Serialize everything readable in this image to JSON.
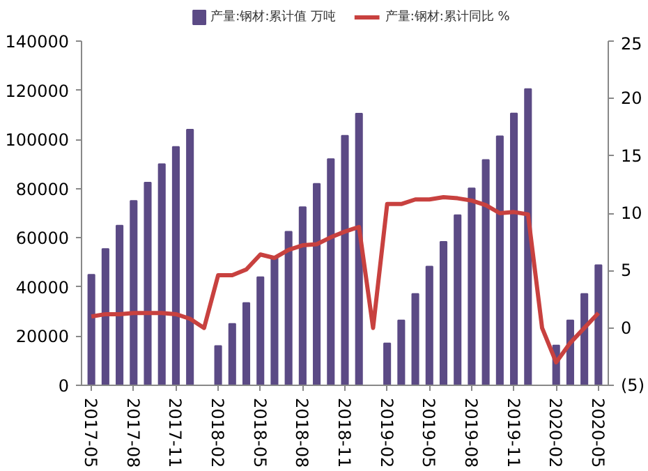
{
  "chart_data": {
    "type": "bar",
    "categories": [
      "2017-05",
      null,
      null,
      "2017-08",
      null,
      null,
      "2017-11",
      null,
      null,
      "2018-02",
      null,
      null,
      "2018-05",
      null,
      null,
      "2018-08",
      null,
      null,
      "2018-11",
      null,
      null,
      "2019-02",
      null,
      null,
      "2019-05",
      null,
      null,
      "2019-08",
      null,
      null,
      "2019-11",
      null,
      null,
      "2020-02",
      null,
      null,
      "2020-05"
    ],
    "series": [
      {
        "name": "产量:钢材:累计值 万吨",
        "color": "#5b4a85",
        "values": [
          45000,
          55500,
          65000,
          75000,
          82500,
          90000,
          97000,
          104000,
          null,
          16000,
          25000,
          33500,
          44000,
          52000,
          62500,
          72500,
          82000,
          92000,
          101500,
          110500,
          null,
          17100,
          26400,
          37200,
          48300,
          58400,
          69200,
          80100,
          91700,
          101300,
          110600,
          120500,
          null,
          16200,
          26400,
          37200,
          48900
        ]
      },
      {
        "name": "产量:钢材:累计同比 %",
        "type": "line",
        "axis": "y2",
        "color": "#c8413f",
        "values": [
          1.0,
          1.2,
          1.2,
          1.3,
          1.3,
          1.3,
          1.2,
          0.8,
          0.0,
          4.6,
          4.6,
          5.1,
          6.4,
          6.1,
          6.8,
          7.2,
          7.3,
          7.9,
          8.4,
          8.8,
          0.0,
          10.8,
          10.8,
          11.2,
          11.2,
          11.4,
          11.3,
          11.1,
          10.7,
          10.0,
          10.1,
          9.9,
          0.0,
          -3.0,
          -1.3,
          0.0,
          1.3
        ]
      }
    ],
    "ylim": [
      0,
      140000
    ],
    "yticks": [
      0,
      20000,
      40000,
      60000,
      80000,
      100000,
      120000,
      140000
    ],
    "y2lim": [
      -5,
      25
    ],
    "y2ticks": [
      {
        "value": -5,
        "label": "(5)"
      },
      0,
      5,
      10,
      15,
      20,
      25
    ],
    "grid": false,
    "legend": "top"
  }
}
